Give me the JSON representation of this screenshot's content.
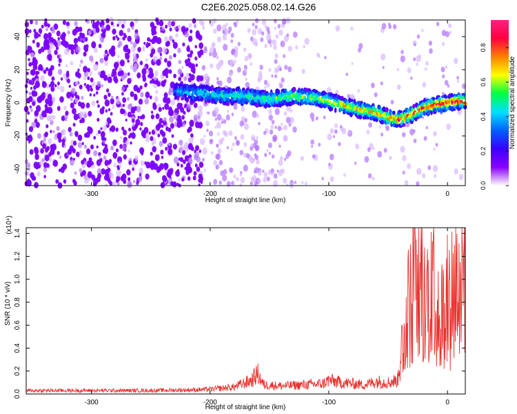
{
  "title": "C2E6.2025.058.02.14.G26",
  "chart_data": [
    {
      "type": "heatmap",
      "xlabel": "Height of straight line (km)",
      "ylabel": "Frequency (Hz)",
      "xlim": [
        -355,
        15
      ],
      "ylim": [
        -50,
        50
      ],
      "xticks": [
        -300,
        -200,
        -100,
        0
      ],
      "yticks": [
        -40,
        -20,
        0,
        20,
        40
      ],
      "signal_ridge": {
        "x": [
          -230,
          -210,
          -190,
          -170,
          -150,
          -130,
          -110,
          -90,
          -75,
          -60,
          -50,
          -40,
          -30,
          -20,
          -10,
          0,
          10,
          15
        ],
        "y": [
          7,
          6,
          4,
          4,
          2,
          4,
          3,
          -1,
          -4,
          -6,
          -9,
          -10,
          -7,
          -3,
          -1,
          0,
          1,
          1
        ]
      },
      "colorbar": {
        "label": "Normalized spectral amplitude",
        "ticks": [
          0.0,
          0.2,
          0.4,
          0.6,
          0.8
        ],
        "range": [
          0,
          0.96
        ],
        "colormap": [
          "#ffffff",
          "#8a00ff",
          "#3a00ff",
          "#0060ff",
          "#00e0ff",
          "#00ff40",
          "#ffff00",
          "#ff8000",
          "#ff0040",
          "#ff2080"
        ]
      },
      "colors": {
        "background_noise": "#7a00ff"
      }
    },
    {
      "type": "line",
      "xlabel": "Height of straight line (km)",
      "ylabel": "SNR (10 * v/v)",
      "y_multiplier": "(x10⁴)",
      "xlim": [
        -355,
        15
      ],
      "ylim": [
        0,
        1.45
      ],
      "xticks": [
        -300,
        -200,
        -100,
        0
      ],
      "yticks": [
        0.0,
        0.2,
        0.4,
        0.6,
        0.8,
        1.0,
        1.2,
        1.4
      ],
      "series": [
        {
          "color": "#e8302c",
          "x": [
            -355,
            -300,
            -250,
            -220,
            -200,
            -180,
            -165,
            -160,
            -155,
            -140,
            -120,
            -105,
            -100,
            -90,
            -70,
            -60,
            -50,
            -42,
            -38,
            -35,
            -30,
            -28,
            -25,
            -22,
            -20,
            -15,
            -12,
            -10,
            -5,
            0,
            5,
            10,
            15
          ],
          "y": [
            0.03,
            0.03,
            0.03,
            0.035,
            0.04,
            0.06,
            0.12,
            0.18,
            0.08,
            0.07,
            0.08,
            0.09,
            0.12,
            0.1,
            0.08,
            0.11,
            0.1,
            0.12,
            0.45,
            0.7,
            0.85,
            1.45,
            0.95,
            1.05,
            0.75,
            0.95,
            1.32,
            0.9,
            0.7,
            0.8,
            0.95,
            1.0,
            1.1
          ]
        }
      ]
    }
  ]
}
